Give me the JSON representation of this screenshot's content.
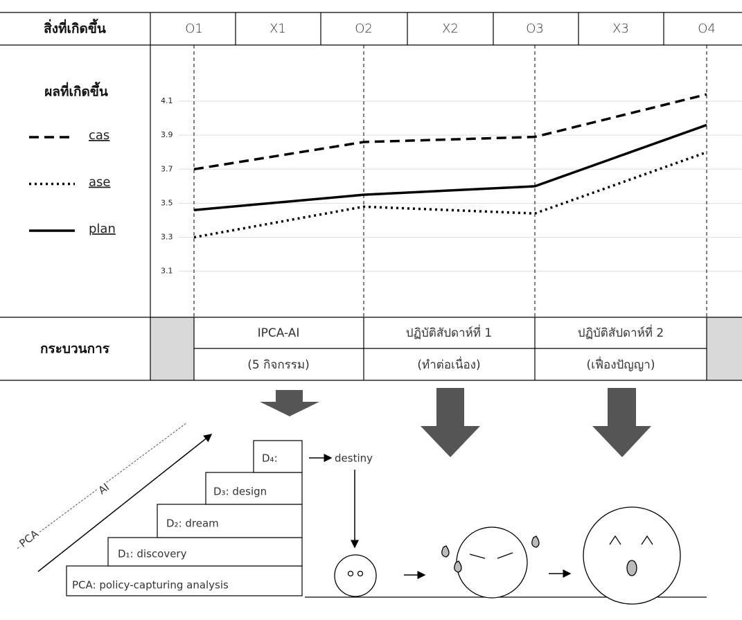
{
  "header": {
    "label": "สิ่งที่เกิดขึ้น",
    "treatments": [
      "X1",
      "X2",
      "X3"
    ]
  },
  "chart_data": {
    "type": "line",
    "legend_title": "ผลที่เกิดขึ้น",
    "categories": [
      "O1",
      "O2",
      "O3",
      "O4"
    ],
    "series": [
      {
        "name": "cas",
        "color": "#000000",
        "dash": "dashed",
        "values": [
          3.7,
          3.86,
          3.89,
          4.14
        ]
      },
      {
        "name": "ase",
        "color": "#000000",
        "dash": "dotted",
        "values": [
          3.3,
          3.48,
          3.44,
          3.8
        ]
      },
      {
        "name": "plan",
        "color": "#000000",
        "dash": "solid",
        "values": [
          3.46,
          3.55,
          3.6,
          3.96
        ]
      }
    ],
    "ylim": [
      2.83,
      4.43
    ],
    "yticks": [
      3.1,
      3.3,
      3.5,
      3.7,
      3.9,
      4.1
    ],
    "grid": true
  },
  "process": {
    "label": "กระบวนการ",
    "phases": [
      {
        "name": "IPCA-AI",
        "detail": "(5 กิจกรรม)"
      },
      {
        "name": "ปฏิบัติสัปดาห์ที่ 1",
        "detail": "(ทำต่อเนื่อง)"
      },
      {
        "name": "ปฏิบัติสัปดาห์ที่ 2",
        "detail": "(เฟื่องปัญญา)"
      }
    ]
  },
  "model": {
    "axis_labels": [
      "PCA",
      "AI"
    ],
    "steps": [
      "PCA: policy-capturing analysis",
      "D₁: discovery",
      "D₂: dream",
      "D₃: design",
      "D₄:"
    ],
    "destiny": "destiny"
  }
}
